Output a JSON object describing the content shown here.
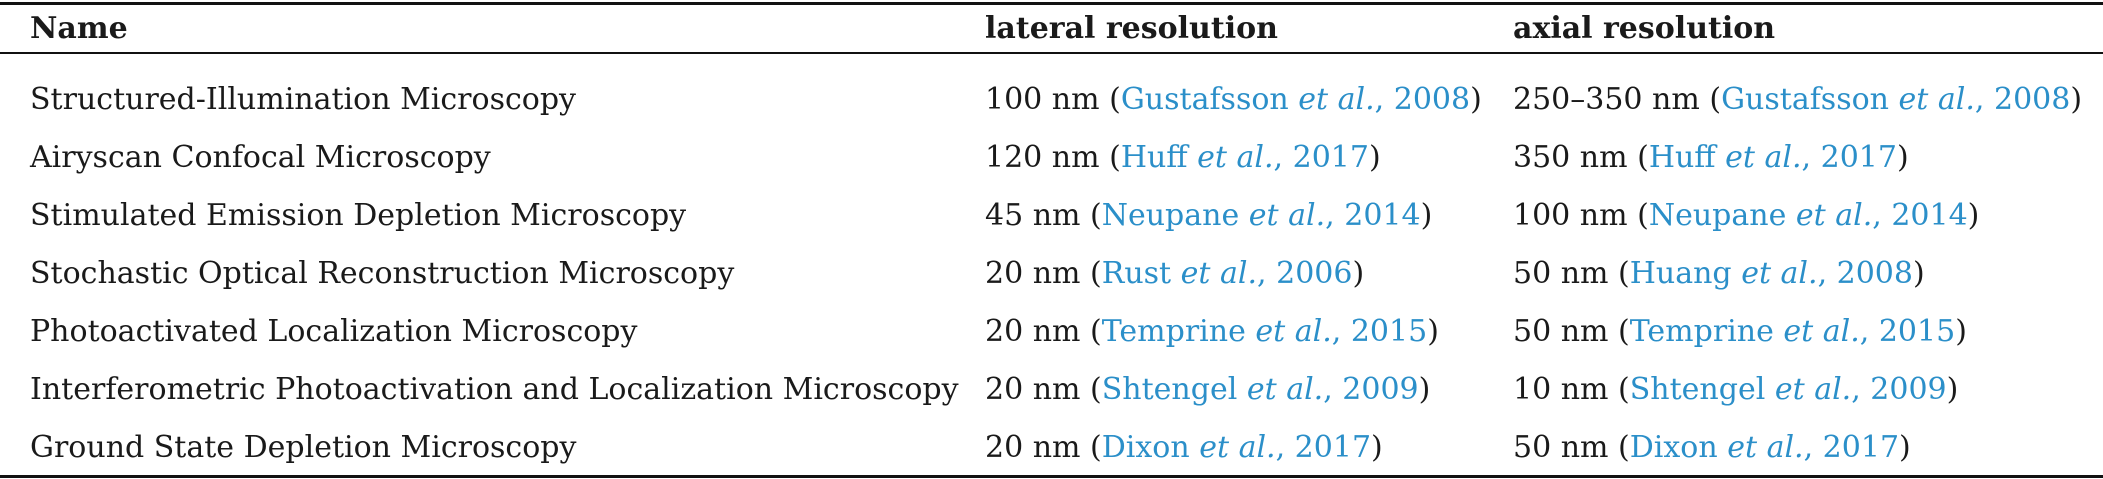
{
  "headers": [
    "Name",
    "lateral resolution",
    "axial resolution"
  ],
  "rows": [
    {
      "name": "Structured-Illumination Microscopy",
      "lateral": {
        "value": "100 nm",
        "author": "Gustafsson",
        "etal": "et al.",
        "year": ", 2008"
      },
      "axial": {
        "value": "250–350 nm",
        "author": "Gustafsson",
        "etal": "et al.",
        "year": ", 2008"
      }
    },
    {
      "name": "Airyscan Confocal Microscopy",
      "lateral": {
        "value": "120 nm",
        "author": "Huff",
        "etal": "et al.",
        "year": ", 2017"
      },
      "axial": {
        "value": "350 nm",
        "author": "Huff",
        "etal": "et al.",
        "year": ", 2017"
      }
    },
    {
      "name": "Stimulated Emission Depletion Microscopy",
      "lateral": {
        "value": "45 nm",
        "author": "Neupane",
        "etal": "et al.",
        "year": ", 2014"
      },
      "axial": {
        "value": "100 nm",
        "author": "Neupane",
        "etal": "et al.",
        "year": ", 2014"
      }
    },
    {
      "name": "Stochastic Optical Reconstruction Microscopy",
      "lateral": {
        "value": "20 nm",
        "author": "Rust",
        "etal": "et al.",
        "year": ", 2006"
      },
      "axial": {
        "value": "50 nm",
        "author": "Huang",
        "etal": "et al.",
        "year": ", 2008"
      }
    },
    {
      "name": "Photoactivated Localization Microscopy",
      "lateral": {
        "value": "20 nm",
        "author": "Temprine",
        "etal": "et al.",
        "year": ", 2015"
      },
      "axial": {
        "value": "50 nm",
        "author": "Temprine",
        "etal": "et al.",
        "year": ", 2015"
      }
    },
    {
      "name": "Interferometric Photoactivation and Localization Microscopy",
      "lateral": {
        "value": "20 nm",
        "author": "Shtengel",
        "etal": "et al.",
        "year": ", 2009"
      },
      "axial": {
        "value": "10 nm",
        "author": "Shtengel",
        "etal": "et al.",
        "year": ", 2009"
      }
    },
    {
      "name": "Ground State Depletion Microscopy",
      "lateral": {
        "value": "20 nm",
        "author": "Dixon",
        "etal": "et al.",
        "year": ", 2017"
      },
      "axial": {
        "value": "50 nm",
        "author": "Dixon",
        "etal": "et al.",
        "year": ", 2017"
      }
    }
  ],
  "colors": {
    "citation_link": "#2b8fc9",
    "text": "#1a1a1a",
    "rules": "#111111"
  }
}
